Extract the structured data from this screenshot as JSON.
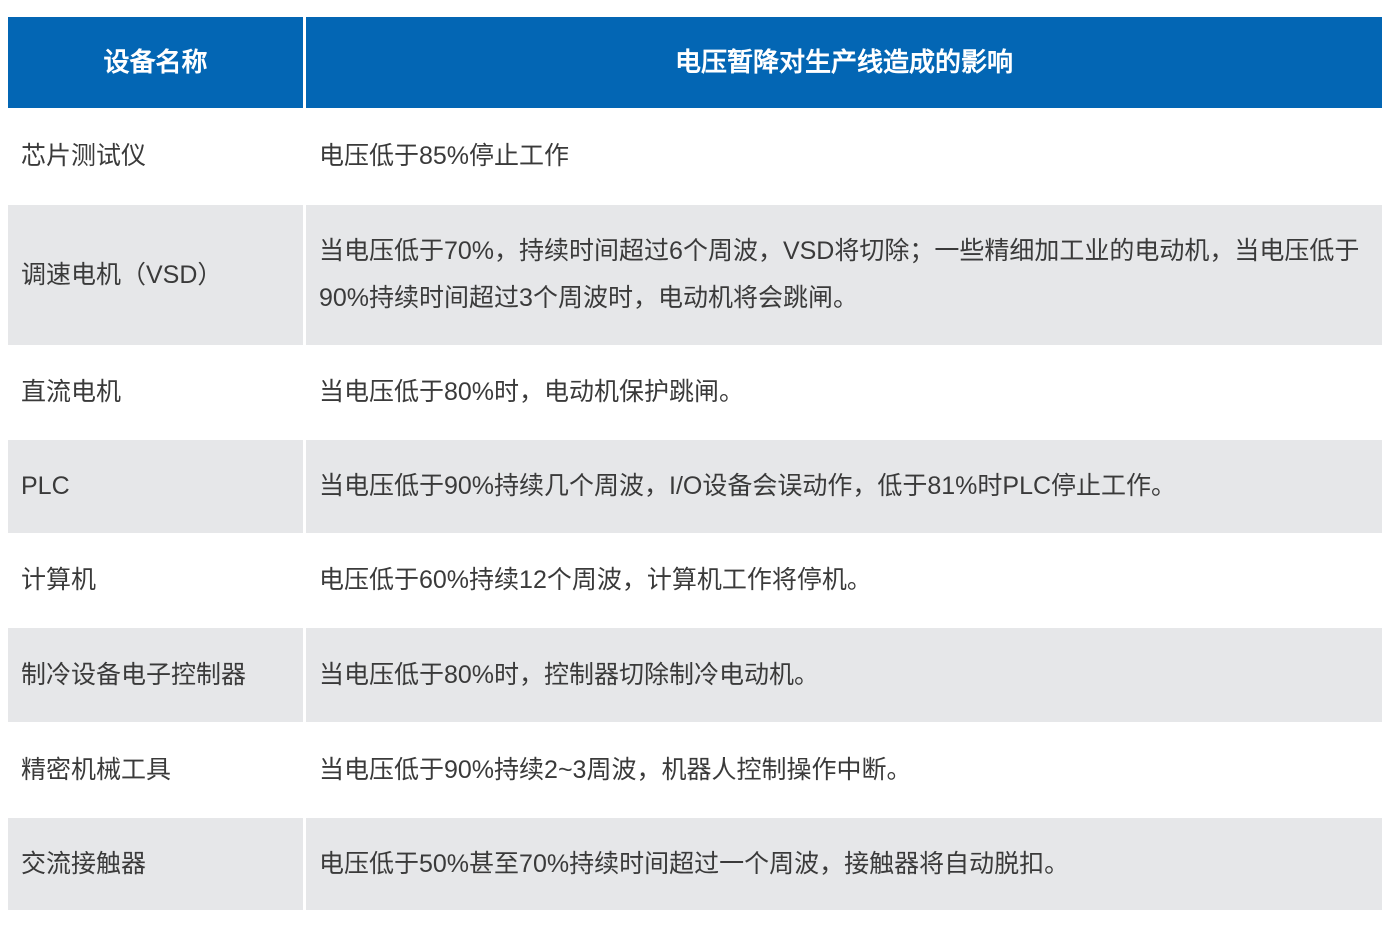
{
  "colors": {
    "header_bg": "#0366b4",
    "stripe_bg": "#e6e7e9",
    "text": "#3a3a3a"
  },
  "table": {
    "headers": [
      "设备名称",
      "电压暂降对生产线造成的影响"
    ],
    "rows": [
      {
        "device": "芯片测试仪",
        "impact": "电压低于85%停止工作"
      },
      {
        "device": "调速电机（VSD）",
        "impact": "当电压低于70%，持续时间超过6个周波，VSD将切除；一些精细加工业的电动机，当电压低于90%持续时间超过3个周波时，电动机将会跳闸。"
      },
      {
        "device": "直流电机",
        "impact": "当电压低于80%时，电动机保护跳闸。"
      },
      {
        "device": "PLC",
        "impact": "当电压低于90%持续几个周波，I/O设备会误动作，低于81%时PLC停止工作。"
      },
      {
        "device": "计算机",
        "impact": "电压低于60%持续12个周波，计算机工作将停机。"
      },
      {
        "device": "制冷设备电子控制器",
        "impact": "当电压低于80%时，控制器切除制冷电动机。"
      },
      {
        "device": "精密机械工具",
        "impact": "当电压低于90%持续2~3周波，机器人控制操作中断。"
      },
      {
        "device": "交流接触器",
        "impact": "电压低于50%甚至70%持续时间超过一个周波，接触器将自动脱扣。"
      }
    ]
  }
}
